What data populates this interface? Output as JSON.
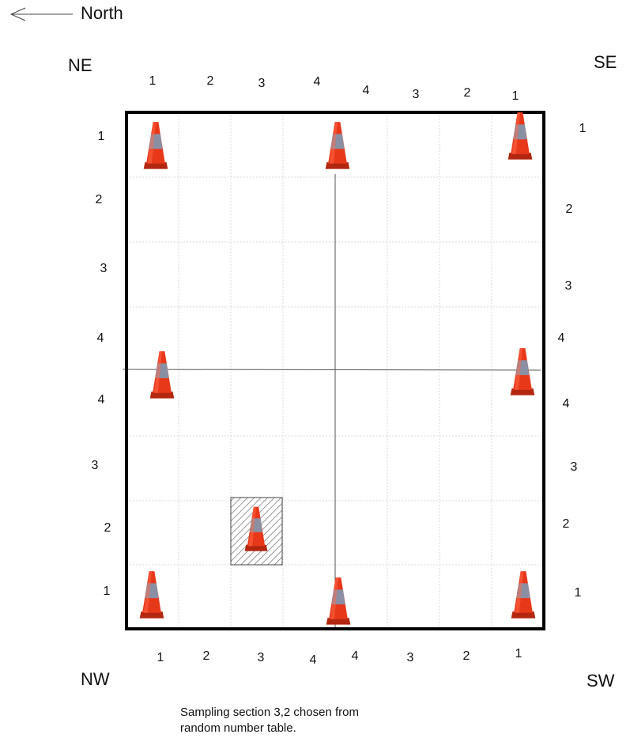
{
  "north_arrow": {
    "label": "North"
  },
  "corners": {
    "ne": "NE",
    "se": "SE",
    "nw": "NW",
    "sw": "SW"
  },
  "top_labels": [
    "1",
    "2",
    "3",
    "4",
    "4",
    "3",
    "2",
    "1"
  ],
  "bottom_labels": [
    "1",
    "2",
    "3",
    "4",
    "4",
    "3",
    "2",
    "1"
  ],
  "left_labels": [
    "1",
    "2",
    "3",
    "4",
    "4",
    "3",
    "2",
    "1"
  ],
  "right_labels": [
    "1",
    "2",
    "3",
    "4",
    "4",
    "3",
    "2",
    "1"
  ],
  "caption": [
    "Sampling section 3,2 chosen from",
    "random number table."
  ]
}
